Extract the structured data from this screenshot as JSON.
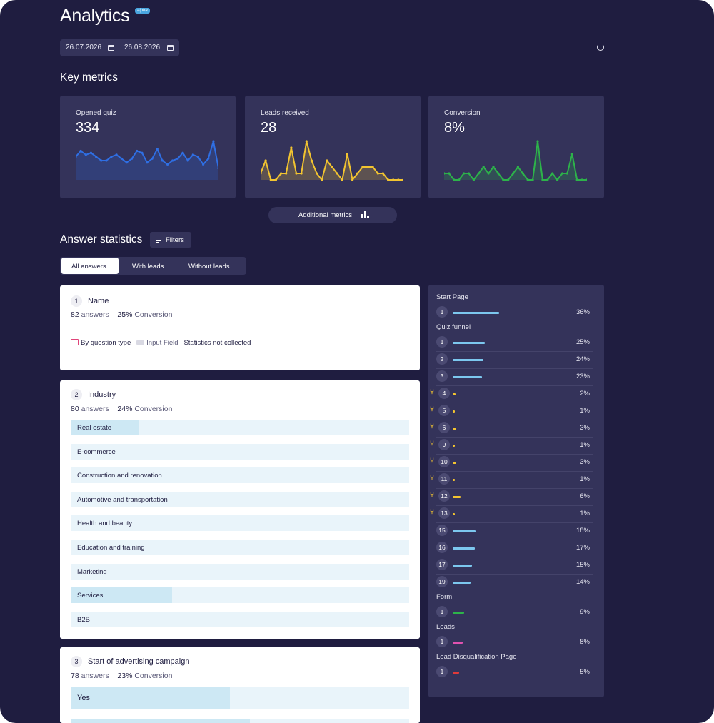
{
  "header": {
    "title": "Analytics",
    "badge": "alpha",
    "date_from": "26.07.2026",
    "date_to": "26.08.2026"
  },
  "key_metrics": {
    "title": "Key metrics",
    "cards": [
      {
        "label": "Opened quiz",
        "value": "334",
        "color": "#2f6fe4",
        "series": [
          12,
          15,
          13,
          14,
          12,
          10,
          10,
          12,
          13,
          11,
          9,
          11,
          15,
          14,
          9,
          11,
          16,
          10,
          8,
          10,
          11,
          14,
          10,
          13,
          12,
          8,
          11,
          20,
          6
        ]
      },
      {
        "label": "Leads received",
        "value": "28",
        "color": "#f2c430",
        "series": [
          1,
          3,
          0,
          0,
          1,
          1,
          5,
          1,
          1,
          6,
          3,
          1,
          0,
          3,
          2,
          1,
          0,
          4,
          0,
          1,
          2,
          2,
          2,
          1,
          1,
          0,
          0,
          0,
          0
        ]
      },
      {
        "label": "Conversion",
        "value": "8%",
        "color": "#2db34a",
        "series": [
          1,
          1,
          0,
          0,
          1,
          1,
          0,
          1,
          2,
          1,
          2,
          1,
          0,
          0,
          1,
          2,
          1,
          0,
          0,
          6,
          0,
          0,
          1,
          0,
          1,
          1,
          4,
          0,
          0,
          0
        ]
      }
    ],
    "additional_label": "Additional metrics"
  },
  "answers": {
    "title": "Answer statistics",
    "filters_label": "Filters",
    "tabs": [
      "All answers",
      "With leads",
      "Without leads"
    ],
    "questions": [
      {
        "num": "1",
        "title": "Name",
        "answers": "82",
        "answers_label": "answers",
        "conversion": "25%",
        "conversion_label": "Conversion",
        "meta": {
          "by_type": "By question type",
          "field_type": "Input Field",
          "note": "Statistics not collected"
        }
      },
      {
        "num": "2",
        "title": "Industry",
        "answers": "80",
        "answers_label": "answers",
        "conversion": "24%",
        "conversion_label": "Conversion",
        "options": [
          {
            "label": "Real estate",
            "share": 0.2
          },
          {
            "label": "E-commerce",
            "share": 0
          },
          {
            "label": "Construction and renovation",
            "share": 0
          },
          {
            "label": "Automotive and transportation",
            "share": 0
          },
          {
            "label": "Health and beauty",
            "share": 0
          },
          {
            "label": "Education and training",
            "share": 0
          },
          {
            "label": "Marketing",
            "share": 0
          },
          {
            "label": "Services",
            "share": 0.3
          },
          {
            "label": "B2B",
            "share": 0
          }
        ]
      },
      {
        "num": "3",
        "title": "Start of advertising campaign",
        "answers": "78",
        "answers_label": "answers",
        "conversion": "23%",
        "conversion_label": "Conversion",
        "options": [
          {
            "label": "Yes",
            "share": 0.47
          }
        ]
      }
    ]
  },
  "funnel": {
    "sections": [
      {
        "title": "Start Page",
        "rows": [
          {
            "num": "1",
            "pct": "36%",
            "color": "#7cc7ee",
            "share": 0.36
          }
        ]
      },
      {
        "title": "Quiz funnel",
        "rows": [
          {
            "num": "1",
            "pct": "25%",
            "color": "#7cc7ee",
            "share": 0.25
          },
          {
            "num": "2",
            "pct": "24%",
            "color": "#7cc7ee",
            "share": 0.24
          },
          {
            "num": "3",
            "pct": "23%",
            "color": "#7cc7ee",
            "share": 0.23
          },
          {
            "num": "4",
            "pct": "2%",
            "color": "#f2c430",
            "share": 0.02,
            "branch": true
          },
          {
            "num": "5",
            "pct": "1%",
            "color": "#f2c430",
            "share": 0.01,
            "branch": true
          },
          {
            "num": "6",
            "pct": "3%",
            "color": "#f2c430",
            "share": 0.03,
            "branch": true
          },
          {
            "num": "9",
            "pct": "1%",
            "color": "#f2c430",
            "share": 0.01,
            "branch": true
          },
          {
            "num": "10",
            "pct": "3%",
            "color": "#f2c430",
            "share": 0.03,
            "branch": true
          },
          {
            "num": "11",
            "pct": "1%",
            "color": "#f2c430",
            "share": 0.01,
            "branch": true
          },
          {
            "num": "12",
            "pct": "6%",
            "color": "#f2c430",
            "share": 0.06,
            "branch": true
          },
          {
            "num": "13",
            "pct": "1%",
            "color": "#f2c430",
            "share": 0.01,
            "branch": true
          },
          {
            "num": "15",
            "pct": "18%",
            "color": "#7cc7ee",
            "share": 0.18
          },
          {
            "num": "16",
            "pct": "17%",
            "color": "#7cc7ee",
            "share": 0.17
          },
          {
            "num": "17",
            "pct": "15%",
            "color": "#7cc7ee",
            "share": 0.15
          },
          {
            "num": "19",
            "pct": "14%",
            "color": "#7cc7ee",
            "share": 0.14
          }
        ]
      },
      {
        "title": "Form",
        "rows": [
          {
            "num": "1",
            "pct": "9%",
            "color": "#2db34a",
            "share": 0.09
          }
        ]
      },
      {
        "title": "Leads",
        "rows": [
          {
            "num": "1",
            "pct": "8%",
            "color": "#e052b0",
            "share": 0.08
          }
        ]
      },
      {
        "title": "Lead Disqualification Page",
        "rows": [
          {
            "num": "1",
            "pct": "5%",
            "color": "#e03a3a",
            "share": 0.05
          }
        ]
      }
    ]
  }
}
